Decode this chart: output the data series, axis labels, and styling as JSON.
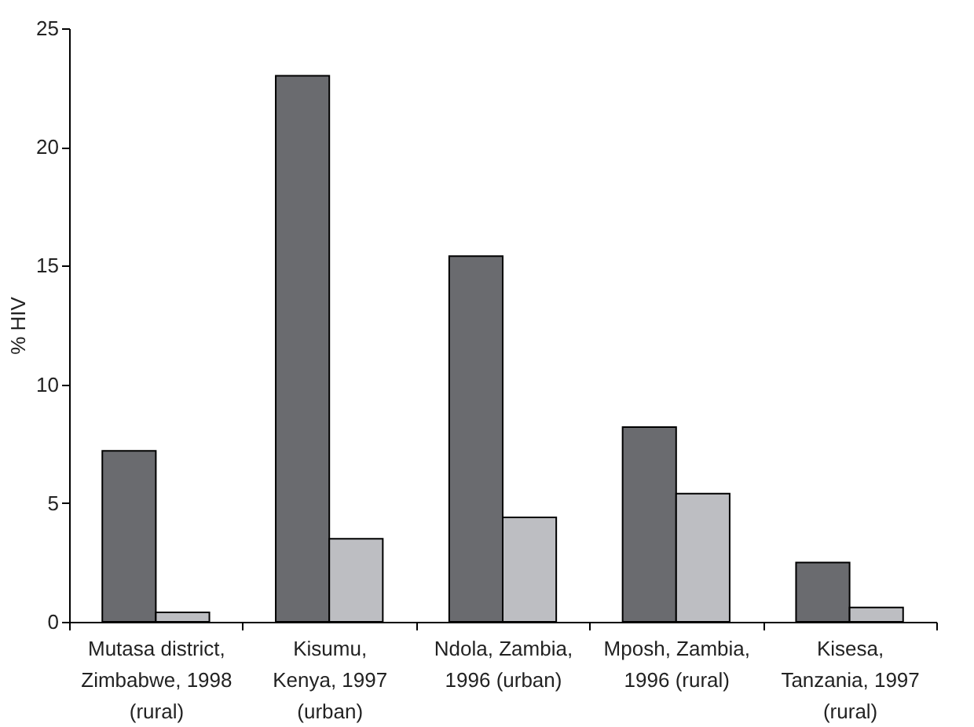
{
  "chart_data": {
    "type": "bar",
    "ylabel": "% HIV",
    "categories": [
      "Mutasa district,\nZimbabwe, 1998\n(rural)",
      "Kisumu,\nKenya, 1997\n(urban)",
      "Ndola,  Zambia,\n1996 (urban)",
      "Mposh,  Zambia,\n1996 (rural)",
      "Kisesa,\nTanzania, 1997\n(rural)"
    ],
    "series": [
      {
        "color": "#6a6b6f",
        "values": [
          7.2,
          23.0,
          15.4,
          8.2,
          2.5
        ]
      },
      {
        "color": "#bdbec2",
        "values": [
          0.4,
          3.5,
          4.4,
          5.4,
          0.6
        ]
      }
    ],
    "ylim": [
      0,
      25
    ],
    "yticks": [
      0,
      5,
      10,
      15,
      20,
      25
    ],
    "grid": false,
    "legend": false
  }
}
